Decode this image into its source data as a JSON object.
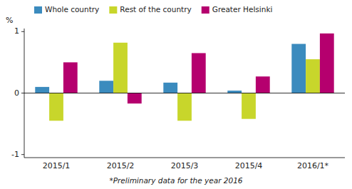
{
  "chart_data": {
    "type": "bar",
    "ylabel": "%",
    "footnote": "*Preliminary data for the year 2016",
    "categories": [
      "2015/1",
      "2015/2",
      "2015/3",
      "2015/4",
      "2016/1*"
    ],
    "series": [
      {
        "name": "Whole country",
        "color": "#3B8BBE",
        "values": [
          0.1,
          0.2,
          0.17,
          0.04,
          0.8
        ]
      },
      {
        "name": "Rest of the country",
        "color": "#C8D62B",
        "values": [
          -0.45,
          0.82,
          -0.45,
          -0.42,
          0.55
        ]
      },
      {
        "name": "Greater Helsinki",
        "color": "#B5006E",
        "values": [
          0.5,
          -0.17,
          0.65,
          0.27,
          0.97
        ]
      }
    ],
    "ylim": [
      -1.05,
      1.05
    ],
    "yticks": [
      -1.0,
      0.0,
      1.0
    ],
    "grid": false,
    "legend": "upper left"
  }
}
